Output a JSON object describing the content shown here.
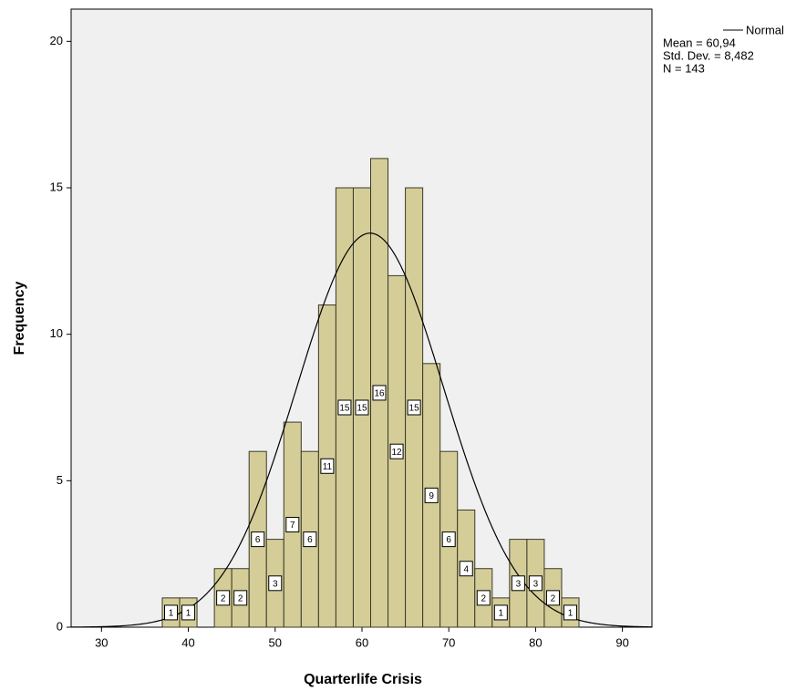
{
  "chart_data": {
    "type": "histogram",
    "x_label": "Quarterlife Crisis",
    "y_label": "Frequency",
    "bins": [
      37,
      39,
      41,
      43,
      45,
      47,
      49,
      51,
      53,
      55,
      57,
      59,
      61,
      63,
      65,
      67,
      69,
      71,
      73,
      75,
      77,
      79,
      81,
      83,
      85
    ],
    "values": [
      1,
      1,
      0,
      2,
      2,
      6,
      3,
      7,
      6,
      11,
      15,
      15,
      16,
      12,
      15,
      9,
      6,
      4,
      2,
      1,
      3,
      3,
      2,
      1
    ],
    "color": "#d4cd98",
    "xlim": [
      26.5,
      93.4
    ],
    "xticks": [
      30,
      40,
      50,
      60,
      70,
      80,
      90
    ],
    "ylim": [
      0,
      21.1
    ],
    "yticks": [
      0,
      5,
      10,
      15,
      20
    ],
    "curve": {
      "name": "Normal",
      "color": "#000000"
    },
    "stats": [
      {
        "value": 60.94,
        "label": "Mean = 60,94"
      },
      {
        "value": 8.482,
        "label": "Std. Dev. = 8,482"
      },
      {
        "value": 143,
        "label": "N = 143"
      }
    ]
  }
}
